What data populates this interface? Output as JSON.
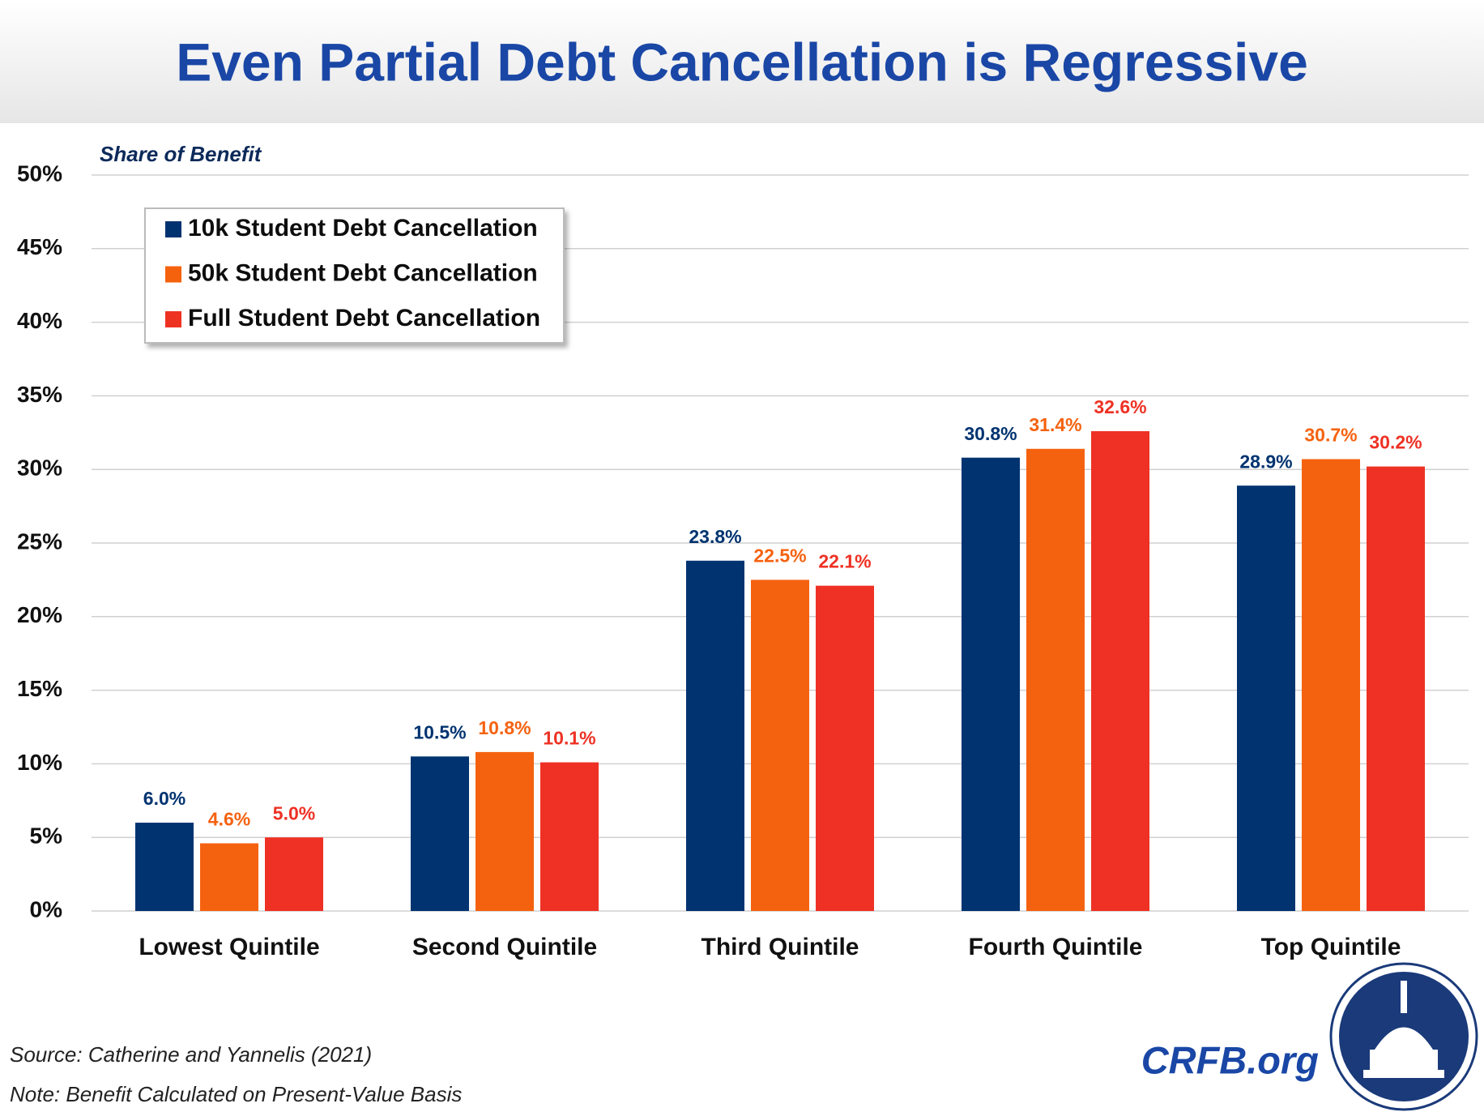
{
  "chart_data": {
    "type": "bar",
    "title": "Even Partial Debt Cancellation is Regressive",
    "y_axis_label": "Share of Benefit",
    "categories": [
      "Lowest Quintile",
      "Second Quintile",
      "Third Quintile",
      "Fourth Quintile",
      "Top Quintile"
    ],
    "series": [
      {
        "name": "10k Student Debt Cancellation",
        "color": "#003370",
        "values": [
          6.0,
          10.5,
          23.8,
          30.8,
          28.9
        ],
        "value_labels": [
          "6.0%",
          "10.5%",
          "23.8%",
          "30.8%",
          "28.9%"
        ]
      },
      {
        "name": "50k Student Debt Cancellation",
        "color": "#f5620f",
        "values": [
          4.6,
          10.8,
          22.5,
          31.4,
          30.7
        ],
        "value_labels": [
          "4.6%",
          "10.8%",
          "22.5%",
          "31.4%",
          "30.7%"
        ]
      },
      {
        "name": "Full Student Debt Cancellation",
        "color": "#ee3124",
        "values": [
          5.0,
          10.1,
          22.1,
          32.6,
          30.2
        ],
        "value_labels": [
          "5.0%",
          "10.1%",
          "22.1%",
          "32.6%",
          "30.2%"
        ]
      }
    ],
    "ylim": [
      0,
      50
    ],
    "yticks": [
      {
        "value": 0,
        "label": "0%"
      },
      {
        "value": 5,
        "label": "5%"
      },
      {
        "value": 10,
        "label": "10%"
      },
      {
        "value": 15,
        "label": "15%"
      },
      {
        "value": 20,
        "label": "20%"
      },
      {
        "value": 25,
        "label": "25%"
      },
      {
        "value": 30,
        "label": "30%"
      },
      {
        "value": 35,
        "label": "35%"
      },
      {
        "value": 40,
        "label": "40%"
      },
      {
        "value": 45,
        "label": "45%"
      },
      {
        "value": 50,
        "label": "50%"
      }
    ],
    "grid": true,
    "legend": "upper left",
    "source": "Source: Catherine and Yannelis (2021)",
    "note": "Note: Benefit Calculated on Present-Value Basis",
    "brand": "CRFB.org"
  }
}
